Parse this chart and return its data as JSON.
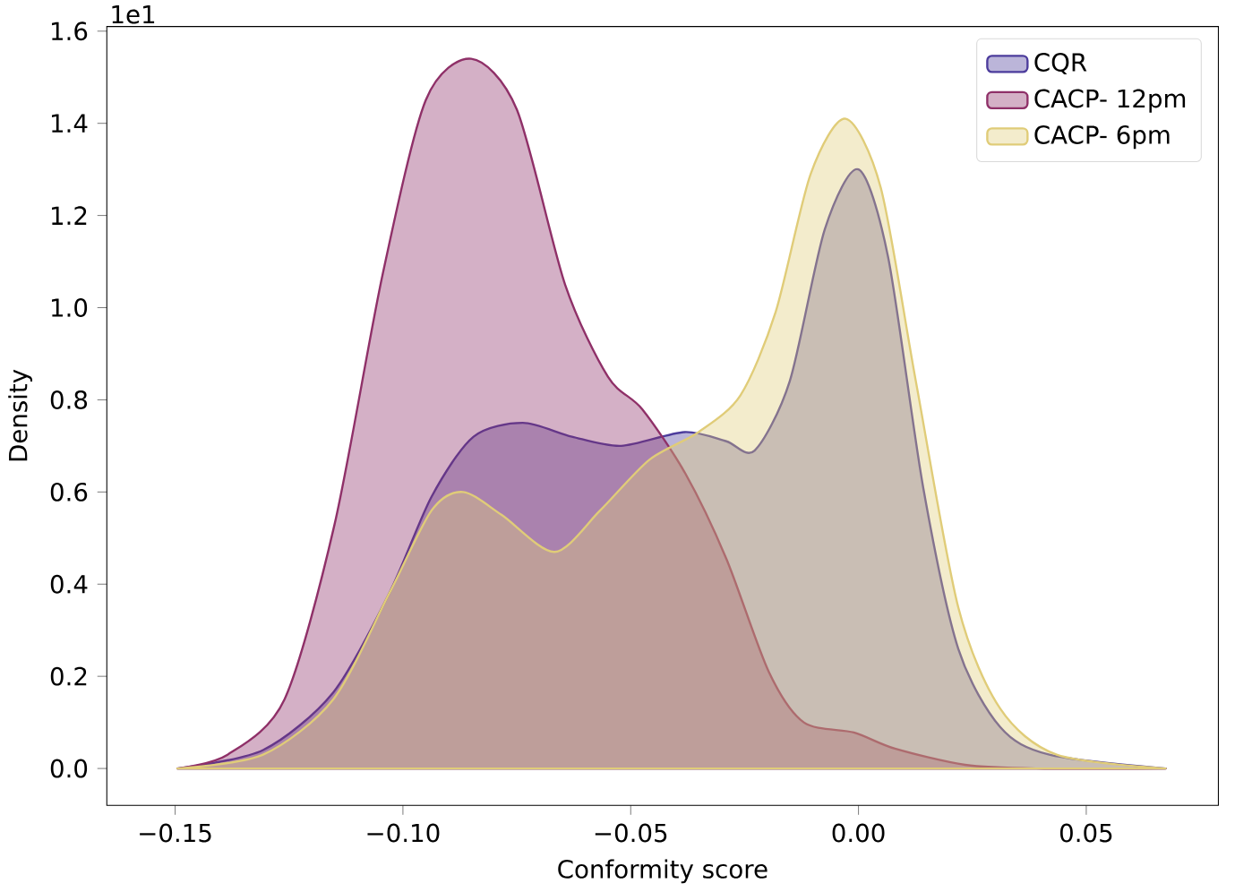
{
  "chart_data": {
    "type": "area",
    "xlabel": "Conformity score",
    "ylabel": "Density",
    "annotations": [
      "1e1"
    ],
    "xlim": [
      -0.165,
      0.079
    ],
    "ylim": [
      -0.08,
      1.61
    ],
    "xticks": [
      {
        "value": -0.15,
        "label": "−0.15"
      },
      {
        "value": -0.1,
        "label": "−0.10"
      },
      {
        "value": -0.05,
        "label": "−0.05"
      },
      {
        "value": 0,
        "label": "0.00"
      },
      {
        "value": 0.05,
        "label": "0.05"
      }
    ],
    "yticks": [
      {
        "value": 0,
        "label": "0.0"
      },
      {
        "value": 0.2,
        "label": "0.2"
      },
      {
        "value": 0.4,
        "label": "0.4"
      },
      {
        "value": 0.6,
        "label": "0.6"
      },
      {
        "value": 0.8,
        "label": "0.8"
      },
      {
        "value": 1.0,
        "label": "1.0"
      },
      {
        "value": 1.2,
        "label": "1.2"
      },
      {
        "value": 1.4,
        "label": "1.4"
      },
      {
        "value": 1.6,
        "label": "1.6"
      }
    ],
    "grid": false,
    "legend": "top right",
    "series": [
      {
        "name": "CQR",
        "color": "#4c3c9c",
        "x": [
          -0.1495,
          -0.1307,
          -0.1153,
          -0.103,
          -0.0937,
          -0.0845,
          -0.0737,
          -0.0629,
          -0.0521,
          -0.0382,
          -0.029,
          -0.0228,
          -0.0151,
          -0.0074,
          0,
          0.0065,
          0.0142,
          0.0219,
          0.0311,
          0.0419,
          0.0674
        ],
        "values": [
          0,
          0.04,
          0.165,
          0.38,
          0.59,
          0.72,
          0.75,
          0.72,
          0.7,
          0.73,
          0.71,
          0.69,
          0.84,
          1.17,
          1.3,
          1.11,
          0.61,
          0.26,
          0.09,
          0.03,
          0
        ]
      },
      {
        "name": "CACP- 12pm",
        "color": "#8f3068",
        "x": [
          -0.1495,
          -0.1385,
          -0.126,
          -0.115,
          -0.1045,
          -0.095,
          -0.085,
          -0.075,
          -0.0644,
          -0.055,
          -0.0475,
          -0.038,
          -0.029,
          -0.0197,
          -0.012,
          -0.001,
          0.008,
          0.0234,
          0.039,
          0.0674
        ],
        "values": [
          0,
          0.03,
          0.15,
          0.53,
          1.07,
          1.45,
          1.54,
          1.43,
          1.05,
          0.85,
          0.78,
          0.64,
          0.455,
          0.21,
          0.1,
          0.078,
          0.043,
          0.008,
          0,
          0
        ]
      },
      {
        "name": "CACP- 6pm",
        "color": "#e0cc78",
        "x": [
          -0.1495,
          -0.1307,
          -0.1153,
          -0.103,
          -0.0937,
          -0.0868,
          -0.0783,
          -0.0667,
          -0.0567,
          -0.0459,
          -0.0351,
          -0.0259,
          -0.0182,
          -0.0105,
          -0.0028,
          0.0049,
          0.0126,
          0.0219,
          0.0311,
          0.0435,
          0.0674
        ],
        "values": [
          0,
          0.03,
          0.15,
          0.38,
          0.56,
          0.6,
          0.55,
          0.47,
          0.56,
          0.67,
          0.73,
          0.81,
          0.99,
          1.29,
          1.41,
          1.26,
          0.84,
          0.35,
          0.13,
          0.03,
          0
        ]
      }
    ]
  }
}
